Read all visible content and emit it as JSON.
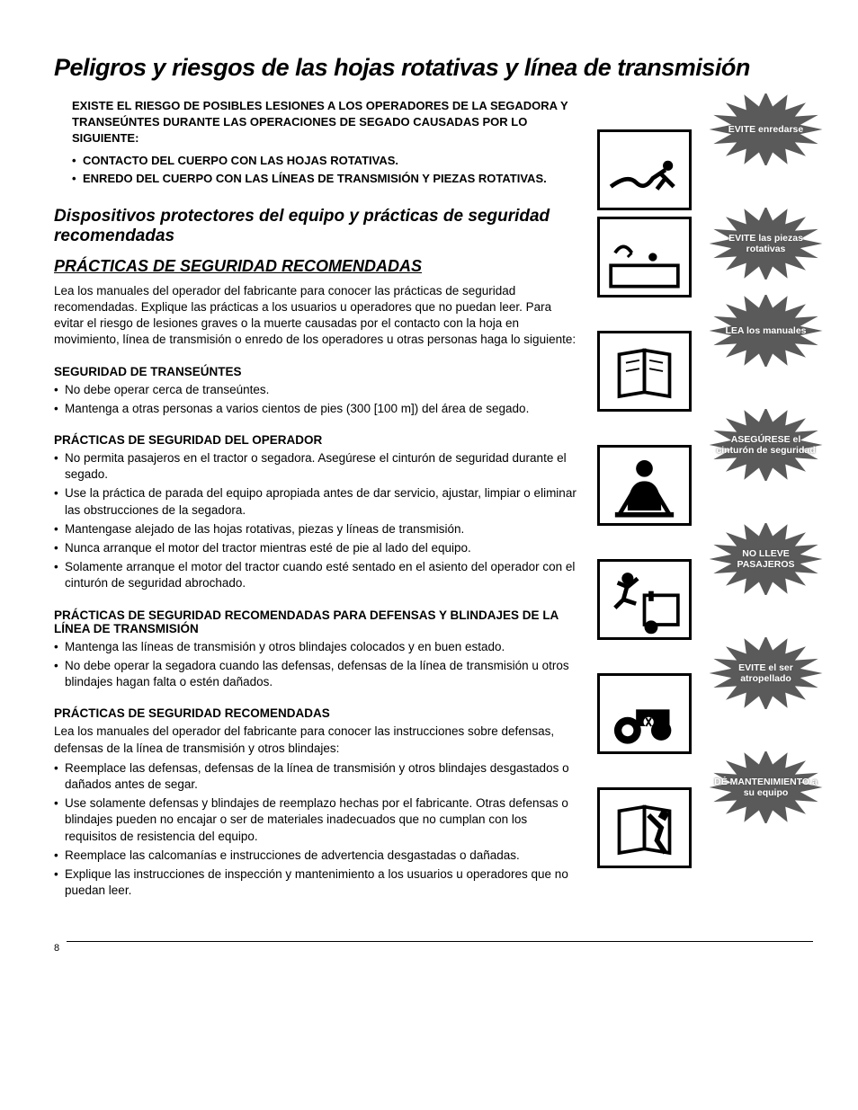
{
  "title": "Peligros y riesgos de las hojas rotativas y línea de transmisión",
  "intro": "EXISTE EL RIESGO DE POSIBLES LESIONES A LOS OPERADORES DE LA SEGADORA Y TRANSEÚNTES DURANTE LAS OPERACIONES DE SEGADO CAUSADAS POR LO SIGUIENTE:",
  "risks": [
    "CONTACTO DEL CUERPO CON LAS HOJAS ROTATIVAS.",
    "ENREDO DEL CUERPO CON LAS LÍNEAS DE TRANSMISIÓN Y PIEZAS ROTATIVAS."
  ],
  "subhead": "Dispositivos protectores del equipo y prácticas de seguridad recomendadas",
  "section_head": "PRÁCTICAS DE SEGURIDAD RECOMENDADAS",
  "body": "Lea los manuales del operador del fabricante para conocer las prácticas de seguridad recomendadas. Explique las prácticas a los usuarios u operadores que no puedan leer. Para evitar el riesgo de lesiones graves o la muerte causadas por el contacto con la hoja en movimiento, línea de transmisión o enredo de los operadores u otras personas haga lo siguiente:",
  "sections": [
    {
      "h": "SEGURIDAD DE TRANSEÚNTES",
      "items": [
        "No debe operar cerca de transeúntes.",
        "Mantenga a otras personas a varios cientos de pies (300 [100 m]) del área de segado."
      ]
    },
    {
      "h": "PRÁCTICAS DE SEGURIDAD DEL OPERADOR",
      "items": [
        "No permita pasajeros en el tractor o segadora. Asegúrese el cinturón de seguridad durante el segado.",
        "Use la práctica de parada del equipo apropiada antes de dar servicio, ajustar, limpiar o eliminar las obstrucciones de la segadora.",
        "Mantengase alejado de las hojas rotativas, piezas y líneas de transmisión.",
        "Nunca arranque el motor del tractor mientras esté de pie al lado del equipo.",
        "Solamente arranque el motor del tractor cuando esté sentado en el asiento del operador con el cinturón de seguridad abrochado."
      ]
    },
    {
      "h": "PRÁCTICAS DE SEGURIDAD RECOMENDADAS PARA DEFENSAS Y BLINDAJES DE LA LÍNEA DE TRANSMISIÓN",
      "items": [
        "Mantenga las líneas de transmisión y otros blindajes colocados y en buen estado.",
        "No debe operar la segadora cuando las defensas, defensas de la línea de transmisión u otros blindajes hagan falta o estén dañados."
      ]
    },
    {
      "h": "PRÁCTICAS DE SEGURIDAD RECOMENDADAS",
      "intro": "Lea los manuales del operador del fabricante para conocer las instrucciones sobre defensas, defensas de la línea de transmisión y otros blindajes:",
      "items": [
        "Reemplace las defensas, defensas de la línea de transmisión y otros blindajes desgastados o dañados antes de segar.",
        "Use solamente defensas y blindajes de reemplazo hechas por el fabricante. Otras defensas o blindajes pueden no encajar o ser de materiales inadecuados que no cumplan con los requisitos de resistencia del equipo.",
        "Reemplace las calcomanías e instrucciones de advertencia desgastadas o dañadas.",
        "Explique las instrucciones de inspección y mantenimiento a los usuarios u operadores que no puedan leer."
      ]
    }
  ],
  "bursts": [
    {
      "text": "EVITE enredarse",
      "glyph": "entangle"
    },
    {
      "text": "EVITE las piezas rotativas",
      "glyph": "rotating"
    },
    {
      "text": "LEA los manuales",
      "glyph": "manual"
    },
    {
      "text": "ASEGÚRESE el cinturón de seguridad",
      "glyph": "seatbelt"
    },
    {
      "text": "NO LLEVE PASAJEROS",
      "glyph": "fall"
    },
    {
      "text": "EVITE el ser atropellado",
      "glyph": "runover"
    },
    {
      "text": "DÉ MANTENIMIENTO a su equipo",
      "glyph": "maintain"
    }
  ],
  "page_number": "8",
  "colors": {
    "burst_fill": "#5a5a5a",
    "text": "#000000",
    "bg": "#ffffff"
  }
}
